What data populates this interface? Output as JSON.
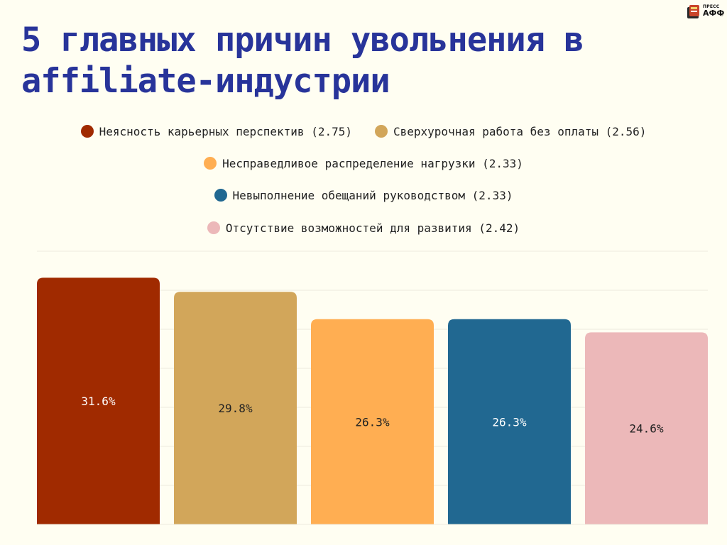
{
  "brand": {
    "top": "ПРЕСС",
    "main": "АФФ",
    "mark": "®"
  },
  "title": "5 главных причин увольнения в affiliate-индустрии",
  "chart_data": {
    "type": "bar",
    "categories": [
      "Неясность карьерных перспектив (2.75)",
      "Сверхурочная работа без оплаты (2.56)",
      "Несправедливое распределение нагрузки (2.33)",
      "Невыполнение обещаний руководством (2.33)",
      "Отсутствие возможностей для развития (2.42)"
    ],
    "values": [
      31.6,
      29.8,
      26.3,
      26.3,
      24.6
    ],
    "value_labels": [
      "31.6%",
      "29.8%",
      "26.3%",
      "26.3%",
      "24.6%"
    ],
    "colors": [
      "#a02a00",
      "#d2a65a",
      "#ffae52",
      "#216891",
      "#ecb8b9"
    ],
    "label_colors": [
      "#ffffff",
      "#222222",
      "#222222",
      "#ffffff",
      "#222222"
    ],
    "ylim": [
      0,
      35
    ],
    "grid": true,
    "legend_position": "top"
  }
}
